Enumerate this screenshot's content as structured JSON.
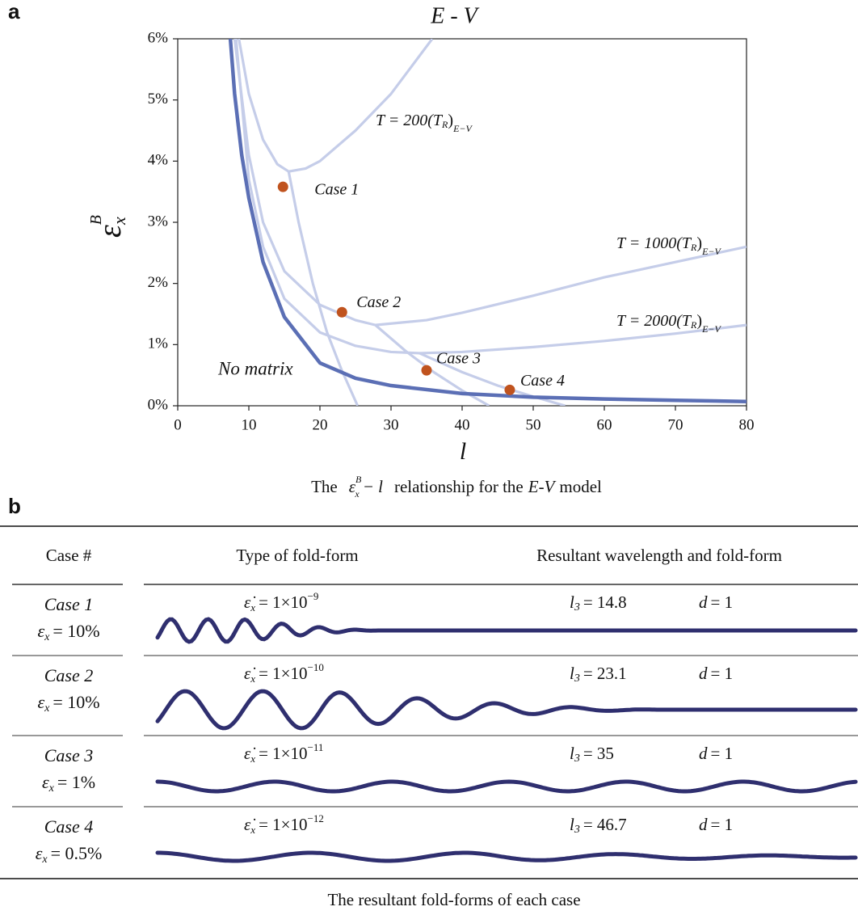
{
  "panel_a": "a",
  "panel_b": "b",
  "chart_data": {
    "type": "line",
    "title": "E - V",
    "xlabel": "l",
    "ylabel": {
      "symbol": "ε",
      "sup": "B",
      "sub": "x"
    },
    "xlim": [
      0,
      80
    ],
    "xticks": [
      0,
      10,
      20,
      30,
      40,
      50,
      60,
      70,
      80
    ],
    "ylim": [
      0,
      6
    ],
    "yticks": [
      {
        "value": 0,
        "label": "0%"
      },
      {
        "value": 1,
        "label": "1%"
      },
      {
        "value": 2,
        "label": "2%"
      },
      {
        "value": 3,
        "label": "3%"
      },
      {
        "value": 4,
        "label": "4%"
      },
      {
        "value": 5,
        "label": "5%"
      },
      {
        "value": 6,
        "label": "6%"
      }
    ],
    "series": [
      {
        "name": "No matrix",
        "color": "#5b6fb5",
        "x": [
          7.4,
          8,
          9,
          10,
          12,
          15,
          20,
          25,
          30,
          40,
          50,
          60,
          70,
          80
        ],
        "values": [
          6,
          5.1,
          4.1,
          3.4,
          2.35,
          1.45,
          0.7,
          0.45,
          0.33,
          0.2,
          0.14,
          0.11,
          0.09,
          0.07
        ]
      },
      {
        "color": "#c5cde9",
        "x": [
          8.6,
          10,
          12,
          14,
          15.6,
          18,
          20,
          25,
          30,
          35.8
        ],
        "values": [
          6,
          5.1,
          4.35,
          3.95,
          3.83,
          3.88,
          4.0,
          4.5,
          5.1,
          6
        ]
      },
      {
        "color": "#c5cde9",
        "x": [
          15.6,
          17,
          19,
          21,
          23,
          25.3
        ],
        "values": [
          3.83,
          3.0,
          2.0,
          1.2,
          0.6,
          0
        ]
      },
      {
        "color": "#c5cde9",
        "x": [
          8,
          10,
          12,
          15,
          20,
          25,
          27.8,
          35,
          40,
          50,
          60,
          70,
          80
        ],
        "values": [
          6,
          4.1,
          3.0,
          2.2,
          1.65,
          1.4,
          1.32,
          1.4,
          1.52,
          1.8,
          2.1,
          2.35,
          2.6
        ]
      },
      {
        "color": "#c5cde9",
        "x": [
          27.8,
          32,
          36,
          40,
          43.8
        ],
        "values": [
          1.32,
          0.9,
          0.55,
          0.25,
          0
        ]
      },
      {
        "color": "#c5cde9",
        "x": [
          8.2,
          10,
          12,
          15,
          20,
          25,
          30,
          34,
          40,
          50,
          60,
          70,
          80
        ],
        "values": [
          6,
          3.7,
          2.6,
          1.75,
          1.2,
          0.98,
          0.88,
          0.86,
          0.88,
          0.96,
          1.06,
          1.18,
          1.32
        ]
      },
      {
        "color": "#c5cde9",
        "x": [
          34,
          40,
          45,
          50,
          54.5
        ],
        "values": [
          0.86,
          0.55,
          0.33,
          0.15,
          0
        ]
      }
    ],
    "cases": {
      "color": "#c0531e",
      "labels": [
        "Case 1",
        "Case 2",
        "Case 3",
        "Case 4"
      ],
      "x": [
        14.8,
        23.1,
        35,
        46.7
      ],
      "values": [
        3.58,
        1.53,
        0.58,
        0.26
      ]
    },
    "annotations": [
      {
        "text": "T = 200(T",
        "sub1": "R",
        "close": ")",
        "sub2": "E−V"
      },
      {
        "text": "T = 1000(T",
        "sub1": "R",
        "close": ")",
        "sub2": "E−V"
      },
      {
        "text": "T = 2000(T",
        "sub1": "R",
        "close": ")",
        "sub2": "E−V"
      }
    ],
    "caption": {
      "lead": "The",
      "symbol": "ε",
      "sup": "B",
      "sub": "x",
      "minus": "− l",
      "rest": "relationship for the",
      "model": "E-V",
      "tail": "model"
    }
  },
  "table": {
    "header": [
      "Case #",
      "Type of fold-form",
      "Resultant wavelength and fold-form"
    ],
    "rows": [
      {
        "case": "Case 1",
        "strain": "ε",
        "strain_sub": "x",
        "strain_value": "= 10%",
        "rate": "ε̇",
        "rate_sub": "x",
        "rate_base": "= 1×10",
        "rate_exp": "−9",
        "l": "l",
        "l_sub": "3",
        "l_value": "= 14.8",
        "d": "d",
        "d_value": "= 1"
      },
      {
        "case": "Case 2",
        "strain": "ε",
        "strain_sub": "x",
        "strain_value": "= 10%",
        "rate": "ε̇",
        "rate_sub": "x",
        "rate_base": "= 1×10",
        "rate_exp": "−10",
        "l": "l",
        "l_sub": "3",
        "l_value": "= 23.1",
        "d": "d",
        "d_value": "= 1"
      },
      {
        "case": "Case 3",
        "strain": "ε",
        "strain_sub": "x",
        "strain_value": "= 1%",
        "rate": "ε̇",
        "rate_sub": "x",
        "rate_base": "= 1×10",
        "rate_exp": "−11",
        "l": "l",
        "l_sub": "3",
        "l_value": "= 35",
        "d": "d",
        "d_value": "= 1"
      },
      {
        "case": "Case 4",
        "strain": "ε",
        "strain_sub": "x",
        "strain_value": "= 0.5%",
        "rate": "ε̇",
        "rate_sub": "x",
        "rate_base": "= 1×10",
        "rate_exp": "−12",
        "l": "l",
        "l_sub": "3",
        "l_value": "= 46.7",
        "d": "d",
        "d_value": "= 1"
      }
    ],
    "caption": "The resultant fold-forms of each case"
  }
}
